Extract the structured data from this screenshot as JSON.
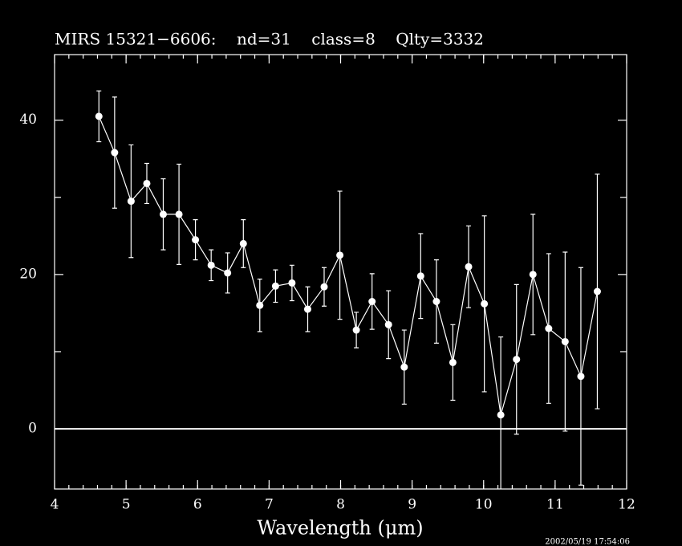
{
  "chart_data": {
    "type": "errorbar_line",
    "title": "MIRS 15321−6606:    nd=31    class=8    Qlty=3332",
    "x_label": "Wavelength (μm)",
    "annotation": "2002/05/19 17:54:06",
    "x": [
      4.62,
      4.84,
      5.07,
      5.29,
      5.52,
      5.74,
      5.97,
      6.19,
      6.42,
      6.64,
      6.87,
      7.09,
      7.32,
      7.54,
      7.77,
      7.99,
      8.22,
      8.44,
      8.67,
      8.89,
      9.12,
      9.34,
      9.57,
      9.79,
      10.01,
      10.24,
      10.46,
      10.69,
      10.91,
      11.14,
      11.36,
      11.59
    ],
    "values": [
      40.5,
      35.8,
      29.5,
      31.8,
      27.8,
      27.8,
      24.5,
      21.2,
      20.2,
      24,
      16,
      18.5,
      18.9,
      15.5,
      18.4,
      22.5,
      12.8,
      16.5,
      13.5,
      8,
      19.8,
      16.5,
      8.6,
      21,
      16.2,
      1.8,
      9,
      20,
      13,
      11.3,
      6.8,
      17.8
    ],
    "errors": [
      3.3,
      7.2,
      7.3,
      2.6,
      4.6,
      6.5,
      2.6,
      2,
      2.6,
      3.1,
      3.4,
      2.1,
      2.3,
      2.9,
      2.5,
      8.3,
      2.3,
      3.6,
      4.4,
      4.8,
      5.5,
      5.4,
      4.9,
      5.3,
      11.4,
      10.1,
      9.7,
      7.8,
      9.7,
      11.6,
      14.1,
      15.2
    ],
    "color": "#ffffff",
    "xlim": [
      4,
      12
    ],
    "ylim": [
      -7.8,
      48.5
    ],
    "xticks": [
      4,
      5,
      6,
      7,
      8,
      9,
      10,
      11,
      12
    ],
    "yticks": [
      0,
      20,
      40
    ],
    "yminorticks": [
      10,
      30
    ],
    "xminor_step": 0.2,
    "zero_line": true
  }
}
